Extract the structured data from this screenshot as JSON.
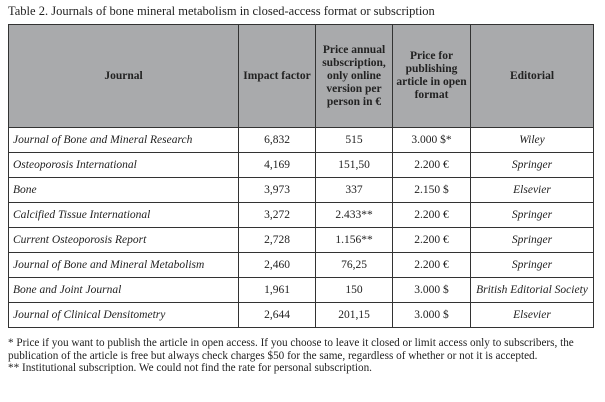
{
  "caption": "Table 2. Journals of bone mineral metabolism in closed-access format or subscription",
  "headers": [
    "Journal",
    "Impact factor",
    "Price annual subscription, only online version per person in €",
    "Price for publishing article in open format",
    "Editorial"
  ],
  "rows": [
    [
      "Journal of Bone and Mineral Research",
      "6,832",
      "515",
      "3.000 $*",
      "Wiley"
    ],
    [
      "Osteoporosis International",
      "4,169",
      "151,50",
      "2.200 €",
      "Springer"
    ],
    [
      "Bone",
      "3,973",
      "337",
      "2.150 $",
      "Elsevier"
    ],
    [
      "Calcified Tissue International",
      "3,272",
      "2.433**",
      "2.200 €",
      "Springer"
    ],
    [
      "Current Osteoporosis Report",
      "2,728",
      "1.156**",
      "2.200 €",
      "Springer"
    ],
    [
      "Journal of Bone  and Mineral Metabolism",
      "2,460",
      "76,25",
      "2.200 €",
      "Springer"
    ],
    [
      "Bone and Joint Journal",
      "1,961",
      "150",
      "3.000 $",
      "British Editorial Society"
    ],
    [
      "Journal of Clinical Densitometry",
      "2,644",
      "201,15",
      "3.000 $",
      "Elsevier"
    ]
  ],
  "footnotes": [
    "* Price if you want to publish the article in open access. If you choose to leave it closed or limit access only to subscribers, the publication of the article is free but always check charges $50 for the same, regardless of whether or not it is accepted.",
    "** Institutional subscription. We could not find the rate for personal subscription."
  ]
}
